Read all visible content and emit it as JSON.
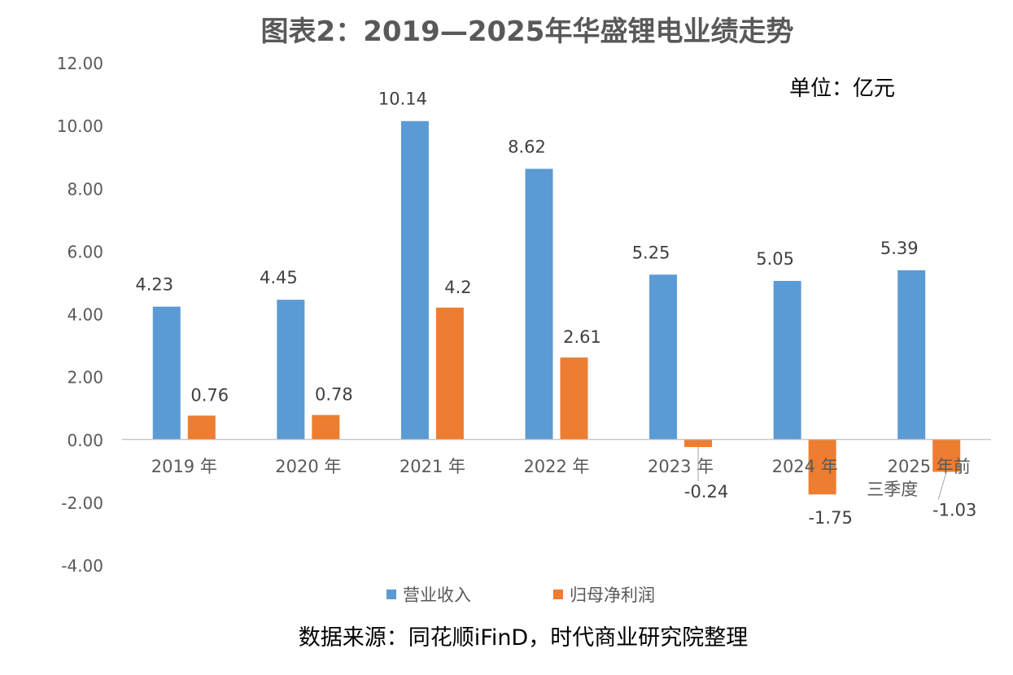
{
  "chart_data": {
    "type": "bar",
    "title": "图表2：2019—2025年华盛锂电业绩走势",
    "unit_note": "单位：亿元",
    "source": "数据来源：同花顺iFinD，时代商业研究院整理",
    "categories": [
      "2019 年",
      "2020 年",
      "2021 年",
      "2022 年",
      "2023 年",
      "2024 年",
      "2025 年前三季度"
    ],
    "series": [
      {
        "name": "营业收入",
        "color": "#5B9BD5",
        "values": [
          4.23,
          4.45,
          10.14,
          8.62,
          5.25,
          5.05,
          5.39
        ]
      },
      {
        "name": "归母净利润",
        "color": "#ED7D31",
        "values": [
          0.76,
          0.78,
          4.2,
          2.61,
          -0.24,
          -1.75,
          -1.03
        ]
      }
    ],
    "ylim": [
      -4,
      12
    ],
    "yticks": [
      "12.00",
      "10.00",
      "8.00",
      "6.00",
      "4.00",
      "2.00",
      "0.00",
      "-2.00",
      "-4.00"
    ],
    "ytick_values": [
      12,
      10,
      8,
      6,
      4,
      2,
      0,
      -2,
      -4
    ],
    "grid": false,
    "legend_position": "bottom"
  }
}
